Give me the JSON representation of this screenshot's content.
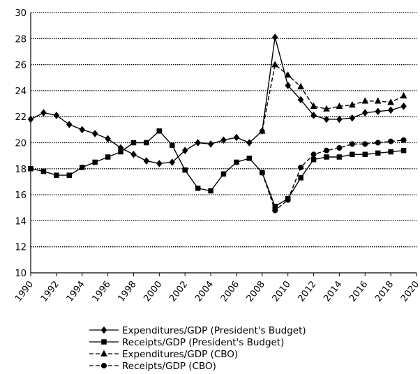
{
  "chart_data": {
    "type": "line",
    "title": "",
    "xlabel": "",
    "ylabel": "",
    "xlim": [
      1990,
      2020
    ],
    "ylim": [
      10,
      30
    ],
    "x_ticks": [
      "1990",
      "1992",
      "1994",
      "1996",
      "1998",
      "2000",
      "2002",
      "2004",
      "2006",
      "2008",
      "2010",
      "2012",
      "2014",
      "2016",
      "2018",
      "2020"
    ],
    "y_ticks": [
      "10",
      "12",
      "14",
      "16",
      "18",
      "20",
      "22",
      "24",
      "26",
      "28",
      "30"
    ],
    "grid": "horizontal dotted",
    "legend_position": "bottom",
    "series": [
      {
        "name": "Expenditures/GDP (President's Budget)",
        "marker": "diamond",
        "line": "solid",
        "color": "#000000",
        "x": [
          1990,
          1991,
          1992,
          1993,
          1994,
          1995,
          1996,
          1997,
          1998,
          1999,
          2000,
          2001,
          2002,
          2003,
          2004,
          2005,
          2006,
          2007,
          2008,
          2009,
          2010,
          2011,
          2012,
          2013,
          2014,
          2015,
          2016,
          2017,
          2018,
          2019
        ],
        "values": [
          21.8,
          22.3,
          22.1,
          21.4,
          21.0,
          20.7,
          20.3,
          19.6,
          19.1,
          18.6,
          18.4,
          18.5,
          19.4,
          20.0,
          19.9,
          20.2,
          20.4,
          20.0,
          20.9,
          28.1,
          24.4,
          23.3,
          22.1,
          21.8,
          21.8,
          21.9,
          22.3,
          22.4,
          22.5,
          22.8
        ]
      },
      {
        "name": "Receipts/GDP (President's Budget)",
        "marker": "square",
        "line": "solid",
        "color": "#000000",
        "x": [
          1990,
          1991,
          1992,
          1993,
          1994,
          1995,
          1996,
          1997,
          1998,
          1999,
          2000,
          2001,
          2002,
          2003,
          2004,
          2005,
          2006,
          2007,
          2008,
          2009,
          2010,
          2011,
          2012,
          2013,
          2014,
          2015,
          2016,
          2017,
          2018,
          2019
        ],
        "values": [
          18.0,
          17.8,
          17.5,
          17.5,
          18.1,
          18.5,
          18.9,
          19.3,
          20.0,
          20.0,
          20.9,
          19.8,
          17.9,
          16.5,
          16.3,
          17.6,
          18.5,
          18.8,
          17.7,
          15.1,
          15.7,
          17.3,
          18.7,
          18.9,
          18.9,
          19.1,
          19.1,
          19.2,
          19.3,
          19.4
        ]
      },
      {
        "name": "Expenditures/GDP (CBO)",
        "marker": "triangle",
        "line": "dashed",
        "color": "#000000",
        "x": [
          2008,
          2009,
          2010,
          2011,
          2012,
          2013,
          2014,
          2015,
          2016,
          2017,
          2018,
          2019
        ],
        "values": [
          20.9,
          26.0,
          25.2,
          24.3,
          22.8,
          22.6,
          22.8,
          22.9,
          23.2,
          23.2,
          23.1,
          23.6
        ]
      },
      {
        "name": "Receipts/GDP (CBO)",
        "marker": "circle",
        "line": "dashed",
        "color": "#000000",
        "x": [
          2008,
          2009,
          2010,
          2011,
          2012,
          2013,
          2014,
          2015,
          2016,
          2017,
          2018,
          2019
        ],
        "values": [
          17.7,
          14.8,
          15.6,
          18.1,
          19.1,
          19.4,
          19.6,
          19.9,
          19.9,
          20.0,
          20.1,
          20.2
        ]
      }
    ]
  }
}
